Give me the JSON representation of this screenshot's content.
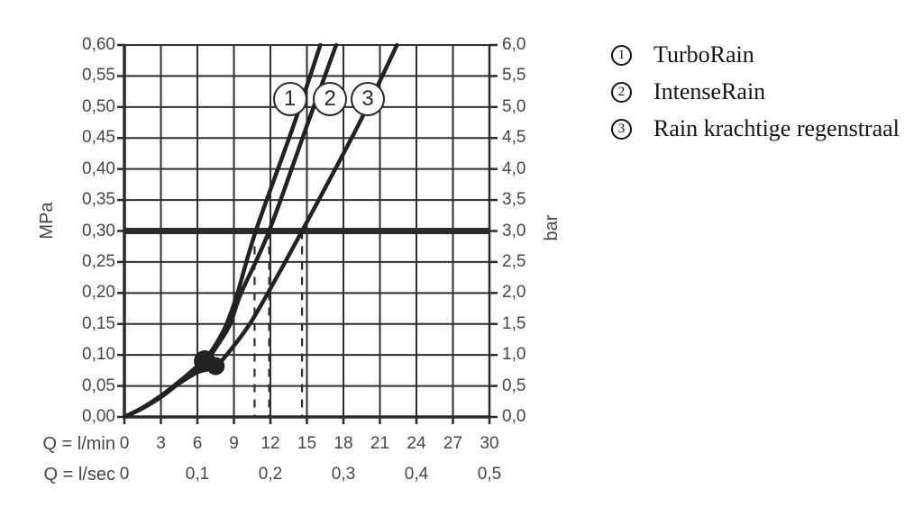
{
  "colors": {
    "line": "#2b2b2b",
    "curve": "#222222",
    "grid": "#2f2f2f",
    "text": "#474747",
    "legend_text": "#151515",
    "background": "#fdfdfd"
  },
  "chart_data": {
    "type": "line",
    "x_axis": {
      "rows": [
        {
          "caption": "Q = l/min",
          "ticks": [
            0,
            3,
            6,
            9,
            12,
            15,
            18,
            21,
            24,
            27,
            30
          ],
          "tick_labels": [
            "0",
            "3",
            "6",
            "9",
            "12",
            "15",
            "18",
            "21",
            "24",
            "27",
            "30"
          ]
        },
        {
          "caption": "Q = l/sec",
          "ticks": [
            0,
            6,
            12,
            18,
            24,
            30
          ],
          "tick_labels": [
            "0",
            "0,1",
            "0,2",
            "0,3",
            "0,4",
            "0,5"
          ]
        }
      ],
      "range_lmin": [
        0,
        30
      ],
      "grid_step_lmin": 3
    },
    "y_axis_left": {
      "caption": "MPa",
      "range": [
        0,
        0.6
      ],
      "step": 0.05,
      "tick_labels": [
        "0,00",
        "0,05",
        "0,10",
        "0,15",
        "0,20",
        "0,25",
        "0,30",
        "0,35",
        "0,40",
        "0,45",
        "0,50",
        "0,55",
        "0,60"
      ]
    },
    "y_axis_right": {
      "caption": "bar",
      "range": [
        0,
        6
      ],
      "step": 0.5,
      "tick_labels": [
        "0,0",
        "0,5",
        "1,0",
        "1,5",
        "2,0",
        "2,5",
        "3,0",
        "3,5",
        "4,0",
        "4,5",
        "5,0",
        "5,5",
        "6,0"
      ]
    },
    "grid": true,
    "series": [
      {
        "id": "1",
        "name": "TurboRain",
        "points_q_lmin_p_mpa": [
          [
            0,
            0
          ],
          [
            1.5,
            0.015
          ],
          [
            3,
            0.034
          ],
          [
            4.5,
            0.057
          ],
          [
            6,
            0.082
          ],
          [
            6.6,
            0.092
          ],
          [
            7.6,
            0.12
          ],
          [
            8.4,
            0.15
          ],
          [
            9.3,
            0.2
          ],
          [
            10.8,
            0.3
          ],
          [
            13.9,
            0.47
          ],
          [
            16.1,
            0.6
          ]
        ]
      },
      {
        "id": "2",
        "name": "IntenseRain",
        "points_q_lmin_p_mpa": [
          [
            0,
            0
          ],
          [
            1.5,
            0.015
          ],
          [
            3,
            0.034
          ],
          [
            4.5,
            0.057
          ],
          [
            6,
            0.08
          ],
          [
            6.7,
            0.09
          ],
          [
            7.8,
            0.12
          ],
          [
            8.7,
            0.15
          ],
          [
            9.6,
            0.2
          ],
          [
            11.9,
            0.3
          ],
          [
            15.0,
            0.47
          ],
          [
            17.4,
            0.6
          ]
        ]
      },
      {
        "id": "3",
        "name": "Rain krachtige regenstraal",
        "points_q_lmin_p_mpa": [
          [
            0,
            0
          ],
          [
            1.5,
            0.014
          ],
          [
            3,
            0.032
          ],
          [
            4.5,
            0.054
          ],
          [
            6,
            0.072
          ],
          [
            7.5,
            0.082
          ],
          [
            8.8,
            0.11
          ],
          [
            10.3,
            0.15
          ],
          [
            11.8,
            0.2
          ],
          [
            14.6,
            0.3
          ],
          [
            19.2,
            0.47
          ],
          [
            22.4,
            0.6
          ]
        ]
      }
    ],
    "series_badges": [
      {
        "n": "1",
        "q_lmin": 13.6,
        "p_mpa": 0.513
      },
      {
        "n": "2",
        "q_lmin": 16.9,
        "p_mpa": 0.513
      },
      {
        "n": "3",
        "q_lmin": 20.0,
        "p_mpa": 0.513
      }
    ],
    "reference_line": {
      "p_mpa": 0.3,
      "p_bar": 3.0
    },
    "dashed_guides_q_lmin": [
      10.7,
      11.9,
      14.6
    ],
    "dots": [
      {
        "q_lmin": 6.6,
        "p_mpa": 0.09,
        "r": 12
      },
      {
        "q_lmin": 7.5,
        "p_mpa": 0.082,
        "r": 10
      }
    ],
    "legend_position": "right"
  },
  "legend": {
    "items": [
      {
        "n": "1",
        "label": "TurboRain"
      },
      {
        "n": "2",
        "label": "IntenseRain"
      },
      {
        "n": "3",
        "label": "Rain krachtige regenstraal"
      }
    ]
  },
  "captions": {
    "y_left": "MPa",
    "y_right": "bar",
    "x_row1": "Q = l/min",
    "x_row2": "Q = l/sec"
  }
}
